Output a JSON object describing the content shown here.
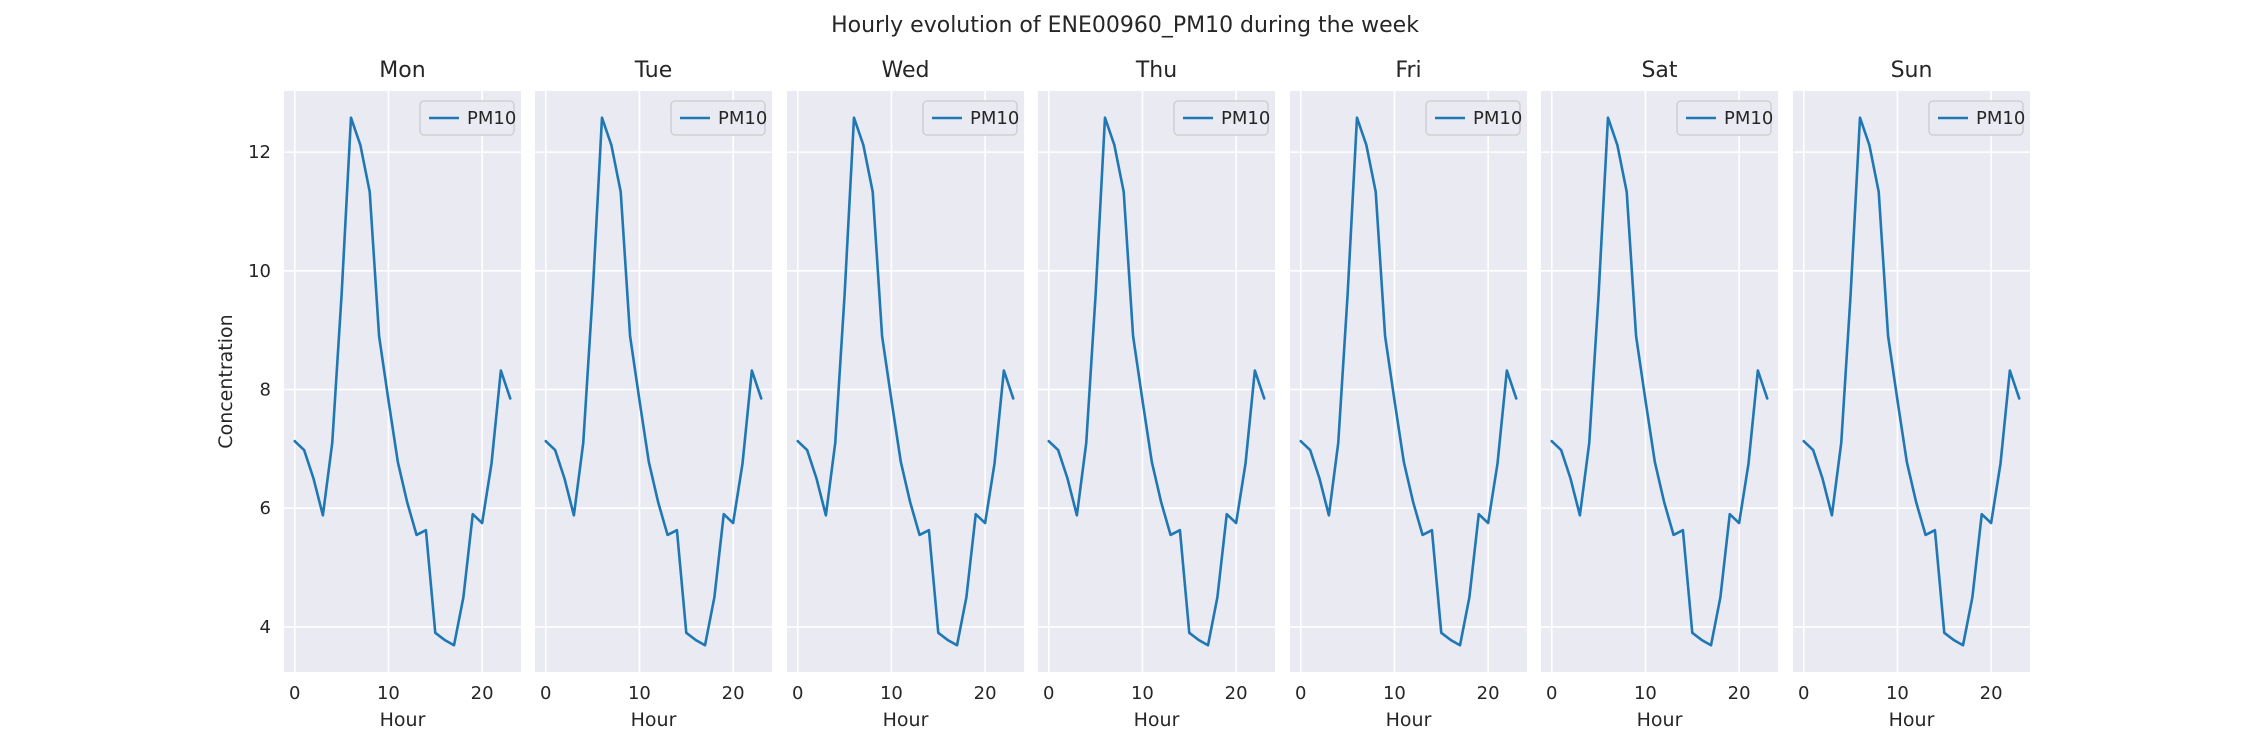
{
  "figure": {
    "suptitle": "Hourly evolution of ENE00960_PM10 during the week"
  },
  "colors": {
    "panel_bg": "#eaeaf2",
    "grid": "#ffffff",
    "series": "#1f77b4",
    "legend_bg": "#eaeaf2",
    "legend_border": "#cccccc",
    "text": "#262626"
  },
  "chart_data": [
    {
      "type": "line",
      "title": "Mon",
      "xlabel": "Hour",
      "ylabel": "Concentration",
      "xlim": [
        -1.15,
        24.15
      ],
      "ylim": [
        3.24,
        13.03
      ],
      "xticks": [
        0,
        10,
        20
      ],
      "yticks": [
        4,
        6,
        8,
        10,
        12
      ],
      "grid": true,
      "legend_position": "top-right",
      "x": [
        0,
        1,
        2,
        3,
        4,
        5,
        6,
        7,
        8,
        9,
        10,
        11,
        12,
        13,
        14,
        15,
        16,
        17,
        18,
        19,
        20,
        21,
        22,
        23
      ],
      "series": [
        {
          "name": "PM10",
          "values": [
            7.13,
            6.98,
            6.5,
            5.88,
            7.1,
            9.6,
            12.58,
            12.12,
            11.33,
            8.9,
            7.82,
            6.78,
            6.1,
            5.55,
            5.63,
            3.9,
            3.78,
            3.69,
            4.5,
            5.9,
            5.75,
            6.75,
            8.32,
            7.85
          ]
        }
      ]
    },
    {
      "type": "line",
      "title": "Tue",
      "xlabel": "Hour",
      "ylabel": "",
      "xlim": [
        -1.15,
        24.15
      ],
      "ylim": [
        3.24,
        13.03
      ],
      "xticks": [
        0,
        10,
        20
      ],
      "yticks": [
        4,
        6,
        8,
        10,
        12
      ],
      "grid": true,
      "legend_position": "top-right",
      "x": [
        0,
        1,
        2,
        3,
        4,
        5,
        6,
        7,
        8,
        9,
        10,
        11,
        12,
        13,
        14,
        15,
        16,
        17,
        18,
        19,
        20,
        21,
        22,
        23
      ],
      "series": [
        {
          "name": "PM10",
          "values": [
            7.13,
            6.98,
            6.5,
            5.88,
            7.1,
            9.6,
            12.58,
            12.12,
            11.33,
            8.9,
            7.82,
            6.78,
            6.1,
            5.55,
            5.63,
            3.9,
            3.78,
            3.69,
            4.5,
            5.9,
            5.75,
            6.75,
            8.32,
            7.85
          ]
        }
      ]
    },
    {
      "type": "line",
      "title": "Wed",
      "xlabel": "Hour",
      "ylabel": "",
      "xlim": [
        -1.15,
        24.15
      ],
      "ylim": [
        3.24,
        13.03
      ],
      "xticks": [
        0,
        10,
        20
      ],
      "yticks": [
        4,
        6,
        8,
        10,
        12
      ],
      "grid": true,
      "legend_position": "top-right",
      "x": [
        0,
        1,
        2,
        3,
        4,
        5,
        6,
        7,
        8,
        9,
        10,
        11,
        12,
        13,
        14,
        15,
        16,
        17,
        18,
        19,
        20,
        21,
        22,
        23
      ],
      "series": [
        {
          "name": "PM10",
          "values": [
            7.13,
            6.98,
            6.5,
            5.88,
            7.1,
            9.6,
            12.58,
            12.12,
            11.33,
            8.9,
            7.82,
            6.78,
            6.1,
            5.55,
            5.63,
            3.9,
            3.78,
            3.69,
            4.5,
            5.9,
            5.75,
            6.75,
            8.32,
            7.85
          ]
        }
      ]
    },
    {
      "type": "line",
      "title": "Thu",
      "xlabel": "Hour",
      "ylabel": "",
      "xlim": [
        -1.15,
        24.15
      ],
      "ylim": [
        3.24,
        13.03
      ],
      "xticks": [
        0,
        10,
        20
      ],
      "yticks": [
        4,
        6,
        8,
        10,
        12
      ],
      "grid": true,
      "legend_position": "top-right",
      "x": [
        0,
        1,
        2,
        3,
        4,
        5,
        6,
        7,
        8,
        9,
        10,
        11,
        12,
        13,
        14,
        15,
        16,
        17,
        18,
        19,
        20,
        21,
        22,
        23
      ],
      "series": [
        {
          "name": "PM10",
          "values": [
            7.13,
            6.98,
            6.5,
            5.88,
            7.1,
            9.6,
            12.58,
            12.12,
            11.33,
            8.9,
            7.82,
            6.78,
            6.1,
            5.55,
            5.63,
            3.9,
            3.78,
            3.69,
            4.5,
            5.9,
            5.75,
            6.75,
            8.32,
            7.85
          ]
        }
      ]
    },
    {
      "type": "line",
      "title": "Fri",
      "xlabel": "Hour",
      "ylabel": "",
      "xlim": [
        -1.15,
        24.15
      ],
      "ylim": [
        3.24,
        13.03
      ],
      "xticks": [
        0,
        10,
        20
      ],
      "yticks": [
        4,
        6,
        8,
        10,
        12
      ],
      "grid": true,
      "legend_position": "top-right",
      "x": [
        0,
        1,
        2,
        3,
        4,
        5,
        6,
        7,
        8,
        9,
        10,
        11,
        12,
        13,
        14,
        15,
        16,
        17,
        18,
        19,
        20,
        21,
        22,
        23
      ],
      "series": [
        {
          "name": "PM10",
          "values": [
            7.13,
            6.98,
            6.5,
            5.88,
            7.1,
            9.6,
            12.58,
            12.12,
            11.33,
            8.9,
            7.82,
            6.78,
            6.1,
            5.55,
            5.63,
            3.9,
            3.78,
            3.69,
            4.5,
            5.9,
            5.75,
            6.75,
            8.32,
            7.85
          ]
        }
      ]
    },
    {
      "type": "line",
      "title": "Sat",
      "xlabel": "Hour",
      "ylabel": "",
      "xlim": [
        -1.15,
        24.15
      ],
      "ylim": [
        3.24,
        13.03
      ],
      "xticks": [
        0,
        10,
        20
      ],
      "yticks": [
        4,
        6,
        8,
        10,
        12
      ],
      "grid": true,
      "legend_position": "top-right",
      "x": [
        0,
        1,
        2,
        3,
        4,
        5,
        6,
        7,
        8,
        9,
        10,
        11,
        12,
        13,
        14,
        15,
        16,
        17,
        18,
        19,
        20,
        21,
        22,
        23
      ],
      "series": [
        {
          "name": "PM10",
          "values": [
            7.13,
            6.98,
            6.5,
            5.88,
            7.1,
            9.6,
            12.58,
            12.12,
            11.33,
            8.9,
            7.82,
            6.78,
            6.1,
            5.55,
            5.63,
            3.9,
            3.78,
            3.69,
            4.5,
            5.9,
            5.75,
            6.75,
            8.32,
            7.85
          ]
        }
      ]
    },
    {
      "type": "line",
      "title": "Sun",
      "xlabel": "Hour",
      "ylabel": "",
      "xlim": [
        -1.15,
        24.15
      ],
      "ylim": [
        3.24,
        13.03
      ],
      "xticks": [
        0,
        10,
        20
      ],
      "yticks": [
        4,
        6,
        8,
        10,
        12
      ],
      "grid": true,
      "legend_position": "top-right",
      "x": [
        0,
        1,
        2,
        3,
        4,
        5,
        6,
        7,
        8,
        9,
        10,
        11,
        12,
        13,
        14,
        15,
        16,
        17,
        18,
        19,
        20,
        21,
        22,
        23
      ],
      "series": [
        {
          "name": "PM10",
          "values": [
            7.13,
            6.98,
            6.5,
            5.88,
            7.1,
            9.6,
            12.58,
            12.12,
            11.33,
            8.9,
            7.82,
            6.78,
            6.1,
            5.55,
            5.63,
            3.9,
            3.78,
            3.69,
            4.5,
            5.9,
            5.75,
            6.75,
            8.32,
            7.85
          ]
        }
      ]
    }
  ]
}
